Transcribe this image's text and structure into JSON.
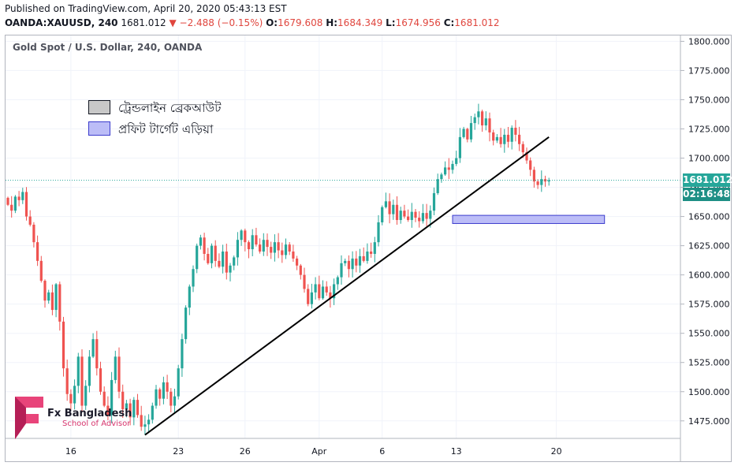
{
  "header": {
    "published": "Published on TradingView.com, April 20, 2020 05:43:13 EST",
    "symbol": "OANDA:XAUUSD, 240",
    "last": "1681.012",
    "change_arrow": "▼",
    "change": "−2.488 (−0.15%)",
    "o_label": "O:",
    "o_value": "1679.608",
    "h_label": "H:",
    "h_value": "1684.349",
    "l_label": "L:",
    "l_value": "1674.956",
    "c_label": "C:",
    "c_value": "1681.012"
  },
  "chart_title": "Gold Spot / U.S. Dollar, 240, OANDA",
  "legend": [
    {
      "label": "ট্রেন্ডলাইন ব্রেকআউট",
      "color": "#c8c8c8"
    },
    {
      "label": "প্রফিট টার্গেট এড়িয়া",
      "color": "#bcbdf7"
    }
  ],
  "price_label": {
    "value": "1681.012",
    "countdown": "02:16:48",
    "color": "#26a69a"
  },
  "logo": {
    "name": "Fx Bangladesh",
    "tagline": "School of Advisor"
  },
  "colors": {
    "up": "#26a69a",
    "down": "#ef5350",
    "trendline": "#000000",
    "target_fill": "#bcbdf7",
    "target_border": "#3c3ccd",
    "last_price_line": "#26a69a"
  },
  "chart_data": {
    "type": "candlestick",
    "symbol": "XAUUSD",
    "timeframe": "240",
    "ylim": [
      1460,
      1805
    ],
    "y_ticks": [
      1475,
      1500,
      1525,
      1550,
      1575,
      1600,
      1625,
      1650,
      1675,
      1700,
      1725,
      1750,
      1775,
      1800
    ],
    "y_tick_labels": [
      "1475.000",
      "1500.000",
      "1525.000",
      "1550.000",
      "1575.000",
      "1600.000",
      "1625.000",
      "1650.000",
      "1675.000",
      "1700.000",
      "1725.000",
      "1750.000",
      "1775.000",
      "1800.000"
    ],
    "x_ticks": [
      {
        "label": "16",
        "bar": 17
      },
      {
        "label": "23",
        "bar": 46
      },
      {
        "label": "26",
        "bar": 64
      },
      {
        "label": "Apr",
        "bar": 84
      },
      {
        "label": "6",
        "bar": 101
      },
      {
        "label": "13",
        "bar": 121
      },
      {
        "label": "20",
        "bar": 148
      }
    ],
    "last_price": 1681.012,
    "trendline": {
      "from": {
        "bar": 37,
        "price": 1463
      },
      "to": {
        "bar": 146,
        "price": 1718
      }
    },
    "target_zone": {
      "from_bar": 120,
      "to_bar": 161,
      "high": 1651,
      "low": 1644
    },
    "closes": [
      1660,
      1655,
      1667,
      1664,
      1671,
      1650,
      1643,
      1628,
      1612,
      1595,
      1578,
      1585,
      1570,
      1592,
      1560,
      1520,
      1498,
      1490,
      1505,
      1530,
      1488,
      1505,
      1530,
      1545,
      1520,
      1500,
      1488,
      1480,
      1510,
      1530,
      1500,
      1485,
      1490,
      1478,
      1493,
      1480,
      1470,
      1472,
      1476,
      1488,
      1502,
      1494,
      1508,
      1500,
      1488,
      1496,
      1520,
      1545,
      1572,
      1590,
      1605,
      1625,
      1632,
      1618,
      1610,
      1625,
      1612,
      1607,
      1620,
      1602,
      1608,
      1615,
      1630,
      1638,
      1628,
      1622,
      1634,
      1626,
      1620,
      1630,
      1624,
      1619,
      1628,
      1621,
      1617,
      1626,
      1620,
      1614,
      1608,
      1600,
      1588,
      1575,
      1585,
      1592,
      1580,
      1590,
      1585,
      1580,
      1592,
      1598,
      1610,
      1612,
      1605,
      1614,
      1608,
      1616,
      1612,
      1620,
      1618,
      1628,
      1645,
      1658,
      1663,
      1652,
      1660,
      1647,
      1655,
      1650,
      1647,
      1654,
      1649,
      1646,
      1653,
      1648,
      1655,
      1670,
      1682,
      1686,
      1692,
      1690,
      1695,
      1700,
      1718,
      1725,
      1716,
      1730,
      1735,
      1740,
      1728,
      1734,
      1722,
      1715,
      1718,
      1712,
      1720,
      1714,
      1726,
      1720,
      1712,
      1705,
      1698,
      1690,
      1680,
      1677,
      1682,
      1680,
      1681
    ]
  }
}
